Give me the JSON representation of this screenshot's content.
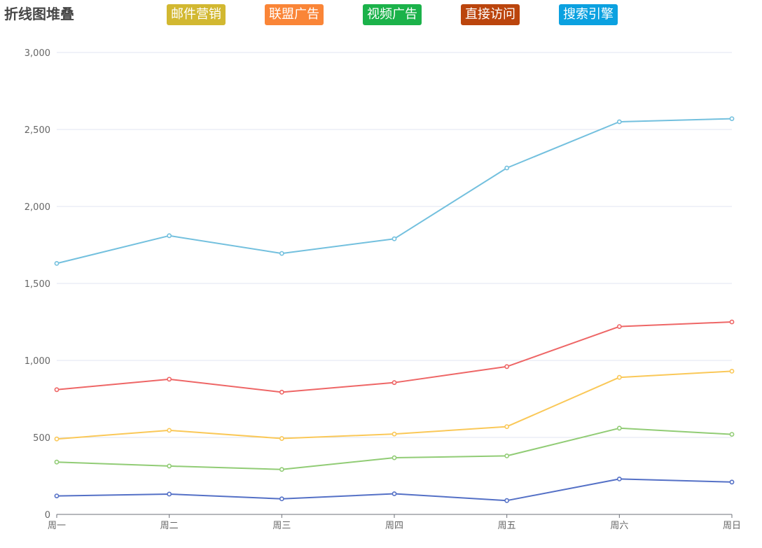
{
  "title": "折线图堆叠",
  "legend": [
    {
      "label": "邮件营销",
      "bg": "#d2b831"
    },
    {
      "label": "联盟广告",
      "bg": "#fa8537"
    },
    {
      "label": "视频广告",
      "bg": "#1bb24a"
    },
    {
      "label": "直接访问",
      "bg": "#bb450d"
    },
    {
      "label": "搜索引擎",
      "bg": "#0ba1e0"
    }
  ],
  "chart_data": {
    "type": "line",
    "stacked": true,
    "categories": [
      "周一",
      "周二",
      "周三",
      "周四",
      "周五",
      "周六",
      "周日"
    ],
    "ylim": [
      0,
      3000
    ],
    "yticks": [
      0,
      500,
      1000,
      1500,
      2000,
      2500,
      3000
    ],
    "ytick_labels": [
      "0",
      "500",
      "1,000",
      "1,500",
      "2,000",
      "2,500",
      "3,000"
    ],
    "grid": true,
    "legend_position": "top",
    "series": [
      {
        "name": "邮件营销",
        "color": "#5470c6",
        "values": [
          120,
          132,
          101,
          134,
          90,
          230,
          210
        ]
      },
      {
        "name": "联盟广告",
        "color": "#91cc75",
        "values": [
          220,
          182,
          191,
          234,
          290,
          330,
          310
        ]
      },
      {
        "name": "视频广告",
        "color": "#fac858",
        "values": [
          150,
          232,
          201,
          154,
          190,
          330,
          410
        ]
      },
      {
        "name": "直接访问",
        "color": "#ee6666",
        "values": [
          320,
          332,
          301,
          334,
          390,
          330,
          320
        ]
      },
      {
        "name": "搜索引擎",
        "color": "#73c0de",
        "values": [
          820,
          932,
          901,
          934,
          1290,
          1330,
          1320
        ]
      }
    ]
  }
}
